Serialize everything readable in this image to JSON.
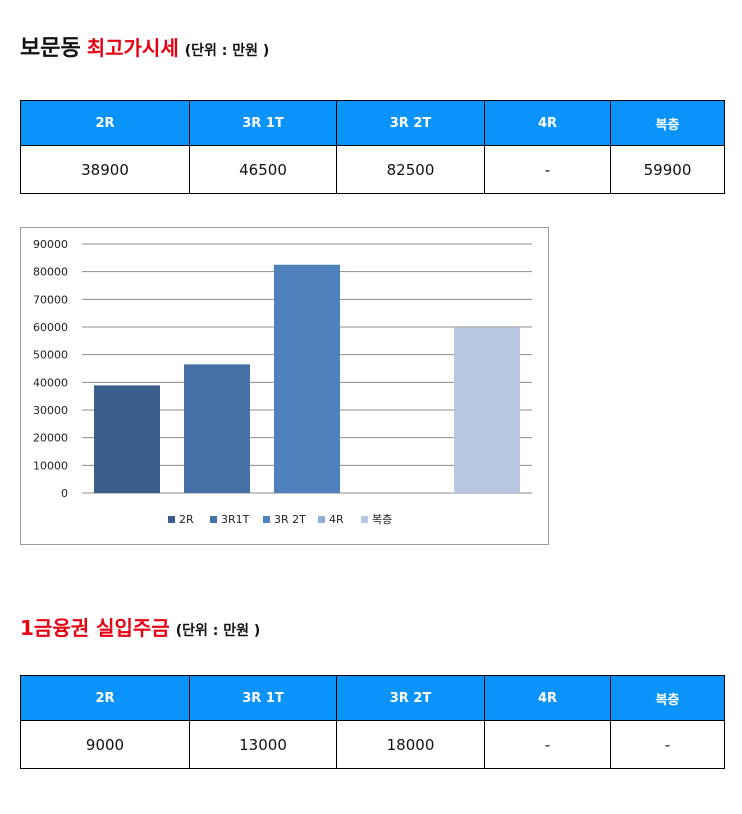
{
  "section1": {
    "title_dark": "보문동",
    "title_red": "최고가시세",
    "unit": "(단위 : 만원 )",
    "headers": [
      "2R",
      "3R 1T",
      "3R 2T",
      "4R",
      "복층"
    ],
    "values": [
      "38900",
      "46500",
      "82500",
      "-",
      "59900"
    ]
  },
  "section2": {
    "title_red": "1금융권 실입주금",
    "unit": "(단위 : 만원 )",
    "headers": [
      "2R",
      "3R 1T",
      "3R 2T",
      "4R",
      "복층"
    ],
    "values": [
      "9000",
      "13000",
      "18000",
      "-",
      "-"
    ]
  },
  "chart_data": {
    "type": "bar",
    "categories": [
      "2R",
      "3R1T",
      "3R 2T",
      "4R",
      "복층"
    ],
    "values": [
      38900,
      46500,
      82500,
      null,
      59900
    ],
    "ylim": [
      0,
      90000
    ],
    "yticks": [
      "90000",
      "80000",
      "70000",
      "60000",
      "50000",
      "40000",
      "30000",
      "20000",
      "10000",
      "0"
    ],
    "grid": true,
    "legend": "bottom",
    "colors": [
      "#3a5d8c",
      "#4671a6",
      "#4f81bd",
      "#95acd6",
      "#b9c8e2"
    ]
  }
}
